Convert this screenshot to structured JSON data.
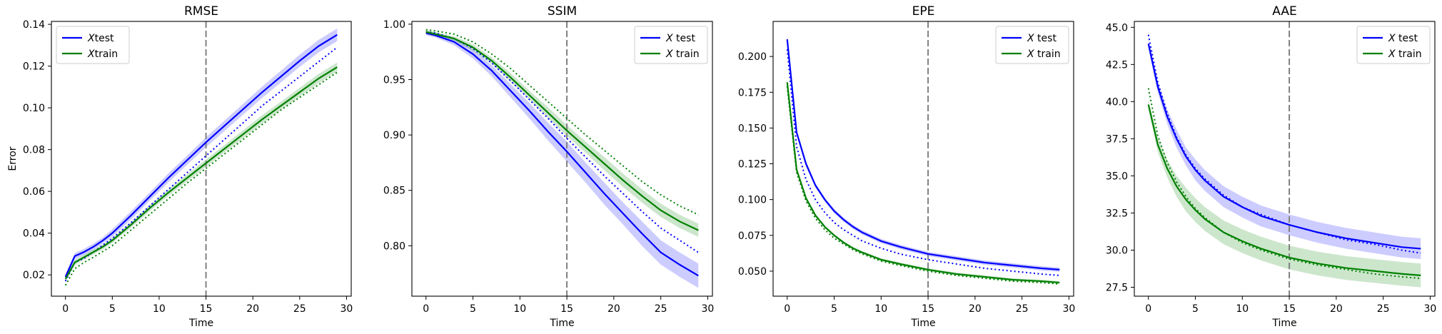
{
  "chart_data": [
    {
      "type": "line",
      "title": "RMSE",
      "xlabel": "Time",
      "ylabel": "Error",
      "xlim": [
        -1.5,
        30.5
      ],
      "ylim": [
        0.0098,
        0.1414
      ],
      "xticks": [
        0,
        5,
        10,
        15,
        20,
        25,
        30
      ],
      "yticks": [
        0.02,
        0.04,
        0.06,
        0.08,
        0.1,
        0.12,
        0.14
      ],
      "ytick_labels": [
        "0.02",
        "0.04",
        "0.06",
        "0.08",
        "0.10",
        "0.12",
        "0.14"
      ],
      "vline_x": 15,
      "legend_loc": "upper-left",
      "legend": [
        {
          "label": "Xtest",
          "italic": "X",
          "rest": "test",
          "color": "#0000ff"
        },
        {
          "label": "Xtrain",
          "italic": "X",
          "rest": "train",
          "color": "#008000"
        }
      ],
      "series": [
        {
          "name": "Xtest",
          "color": "#0000ff",
          "style": "solid",
          "x": [
            0,
            1,
            2,
            3,
            4,
            5,
            7,
            9,
            11,
            13,
            15,
            17,
            19,
            21,
            23,
            25,
            27,
            29
          ],
          "y": [
            0.019,
            0.029,
            0.031,
            0.0335,
            0.0365,
            0.04,
            0.0485,
            0.0575,
            0.0665,
            0.075,
            0.0835,
            0.0915,
            0.0995,
            0.1075,
            0.115,
            0.1225,
            0.1295,
            0.135
          ],
          "band": [
            0.0015,
            0.0015,
            0.0015,
            0.0015,
            0.0015,
            0.0018,
            0.002,
            0.002,
            0.0022,
            0.0022,
            0.0024,
            0.0025,
            0.0026,
            0.0027,
            0.0028,
            0.0029,
            0.003,
            0.003
          ]
        },
        {
          "name": "",
          "color": "#0000ff",
          "style": "dotted",
          "x": [
            0,
            1,
            2,
            3,
            5,
            7,
            9,
            11,
            13,
            15,
            17,
            19,
            21,
            23,
            25,
            27,
            29
          ],
          "y": [
            0.017,
            0.026,
            0.028,
            0.031,
            0.0375,
            0.045,
            0.053,
            0.061,
            0.069,
            0.077,
            0.085,
            0.093,
            0.101,
            0.108,
            0.115,
            0.122,
            0.129
          ]
        },
        {
          "name": "Xtrain",
          "color": "#008000",
          "style": "solid",
          "x": [
            0,
            1,
            2,
            3,
            4,
            5,
            7,
            9,
            11,
            13,
            15,
            17,
            19,
            21,
            23,
            25,
            27,
            29
          ],
          "y": [
            0.018,
            0.026,
            0.0285,
            0.031,
            0.0335,
            0.0365,
            0.044,
            0.052,
            0.0595,
            0.0665,
            0.0735,
            0.0805,
            0.0875,
            0.0945,
            0.101,
            0.1075,
            0.114,
            0.1195
          ],
          "band": [
            0.0012,
            0.0012,
            0.0012,
            0.0012,
            0.0012,
            0.0013,
            0.0014,
            0.0015,
            0.0016,
            0.0017,
            0.0018,
            0.0018,
            0.0019,
            0.002,
            0.002,
            0.0021,
            0.0022,
            0.0022
          ]
        },
        {
          "name": "",
          "color": "#008000",
          "style": "dotted",
          "x": [
            0,
            1,
            2,
            3,
            5,
            7,
            9,
            11,
            13,
            15,
            17,
            19,
            21,
            23,
            25,
            27,
            29
          ],
          "y": [
            0.015,
            0.023,
            0.026,
            0.0285,
            0.034,
            0.0415,
            0.049,
            0.0565,
            0.064,
            0.071,
            0.078,
            0.085,
            0.092,
            0.099,
            0.105,
            0.111,
            0.117
          ]
        }
      ]
    },
    {
      "type": "line",
      "title": "SSIM",
      "xlabel": "Time",
      "ylabel": "",
      "xlim": [
        -1.5,
        30.5
      ],
      "ylim": [
        0.7545,
        1.0025
      ],
      "xticks": [
        0,
        5,
        10,
        15,
        20,
        25,
        30
      ],
      "yticks": [
        0.8,
        0.85,
        0.9,
        0.95,
        1.0
      ],
      "ytick_labels": [
        "0.80",
        "0.85",
        "0.90",
        "0.95",
        "1.00"
      ],
      "vline_x": 15,
      "legend_loc": "upper-right",
      "legend": [
        {
          "label": "X test",
          "italic": "X",
          "rest": " test",
          "color": "#0000ff"
        },
        {
          "label": "X train",
          "italic": "X",
          "rest": " train",
          "color": "#008000"
        }
      ],
      "series": [
        {
          "name": "X test",
          "color": "#0000ff",
          "style": "solid",
          "x": [
            0,
            1,
            3,
            5,
            7,
            9,
            11,
            13,
            15,
            17,
            19,
            21,
            23,
            25,
            27,
            29
          ],
          "y": [
            0.992,
            0.99,
            0.984,
            0.973,
            0.958,
            0.94,
            0.922,
            0.903,
            0.885,
            0.866,
            0.847,
            0.829,
            0.811,
            0.794,
            0.783,
            0.773
          ],
          "band": [
            0.002,
            0.002,
            0.003,
            0.004,
            0.005,
            0.006,
            0.007,
            0.008,
            0.009,
            0.009,
            0.01,
            0.01,
            0.011,
            0.011,
            0.011,
            0.011
          ]
        },
        {
          "name": "",
          "color": "#0000ff",
          "style": "dotted",
          "x": [
            0,
            1,
            3,
            5,
            7,
            9,
            11,
            13,
            15,
            17,
            19,
            21,
            23,
            25,
            27,
            29
          ],
          "y": [
            0.993,
            0.992,
            0.987,
            0.978,
            0.965,
            0.949,
            0.932,
            0.915,
            0.897,
            0.88,
            0.863,
            0.847,
            0.831,
            0.816,
            0.805,
            0.794
          ]
        },
        {
          "name": "X train",
          "color": "#008000",
          "style": "solid",
          "x": [
            0,
            1,
            3,
            5,
            7,
            9,
            11,
            13,
            15,
            17,
            19,
            21,
            23,
            25,
            27,
            29
          ],
          "y": [
            0.993,
            0.991,
            0.987,
            0.979,
            0.967,
            0.952,
            0.936,
            0.92,
            0.904,
            0.889,
            0.874,
            0.859,
            0.845,
            0.832,
            0.822,
            0.814
          ],
          "band": [
            0.002,
            0.002,
            0.002,
            0.003,
            0.003,
            0.004,
            0.004,
            0.005,
            0.005,
            0.005,
            0.006,
            0.006,
            0.006,
            0.006,
            0.006,
            0.006
          ]
        },
        {
          "name": "",
          "color": "#008000",
          "style": "dotted",
          "x": [
            0,
            1,
            3,
            5,
            7,
            9,
            11,
            13,
            15,
            17,
            19,
            21,
            23,
            25,
            27,
            29
          ],
          "y": [
            0.995,
            0.994,
            0.991,
            0.984,
            0.973,
            0.96,
            0.945,
            0.93,
            0.915,
            0.9,
            0.886,
            0.872,
            0.858,
            0.846,
            0.836,
            0.828
          ]
        }
      ]
    },
    {
      "type": "line",
      "title": "EPE",
      "xlabel": "Time",
      "ylabel": "",
      "xlim": [
        -1.5,
        30.5
      ],
      "ylim": [
        0.0325,
        0.2245
      ],
      "xticks": [
        0,
        5,
        10,
        15,
        20,
        25,
        30
      ],
      "yticks": [
        0.05,
        0.075,
        0.1,
        0.125,
        0.15,
        0.175,
        0.2
      ],
      "ytick_labels": [
        "0.050",
        "0.075",
        "0.100",
        "0.125",
        "0.150",
        "0.175",
        "0.200"
      ],
      "vline_x": 15,
      "legend_loc": "upper-right",
      "legend": [
        {
          "label": "X test",
          "italic": "X",
          "rest": " test",
          "color": "#0000ff"
        },
        {
          "label": "X train",
          "italic": "X",
          "rest": " train",
          "color": "#008000"
        }
      ],
      "series": [
        {
          "name": "X test",
          "color": "#0000ff",
          "style": "solid",
          "x": [
            0,
            1,
            2,
            3,
            4,
            5,
            6,
            7,
            8,
            10,
            12,
            15,
            18,
            21,
            24,
            27,
            29
          ],
          "y": [
            0.212,
            0.147,
            0.125,
            0.11,
            0.1,
            0.092,
            0.086,
            0.081,
            0.077,
            0.071,
            0.067,
            0.062,
            0.059,
            0.056,
            0.054,
            0.052,
            0.051
          ],
          "band": [
            0.003,
            0.002,
            0.002,
            0.0015,
            0.0015,
            0.0015,
            0.0015,
            0.0015,
            0.0015,
            0.0015,
            0.0015,
            0.0015,
            0.0015,
            0.0015,
            0.0015,
            0.0015,
            0.0015
          ]
        },
        {
          "name": "",
          "color": "#0000ff",
          "style": "dotted",
          "x": [
            0,
            1,
            2,
            3,
            4,
            5,
            6,
            7,
            8,
            10,
            12,
            15,
            18,
            21,
            24,
            27,
            29
          ],
          "y": [
            0.205,
            0.137,
            0.114,
            0.1,
            0.091,
            0.084,
            0.079,
            0.075,
            0.071,
            0.066,
            0.062,
            0.058,
            0.055,
            0.052,
            0.05,
            0.048,
            0.047
          ]
        },
        {
          "name": "X train",
          "color": "#008000",
          "style": "solid",
          "x": [
            0,
            1,
            2,
            3,
            4,
            5,
            6,
            7,
            8,
            10,
            12,
            15,
            18,
            21,
            24,
            27,
            29
          ],
          "y": [
            0.182,
            0.121,
            0.101,
            0.089,
            0.081,
            0.075,
            0.07,
            0.066,
            0.063,
            0.058,
            0.055,
            0.051,
            0.048,
            0.046,
            0.044,
            0.043,
            0.042
          ],
          "band": [
            0.002,
            0.0015,
            0.0012,
            0.001,
            0.001,
            0.001,
            0.001,
            0.001,
            0.001,
            0.001,
            0.001,
            0.001,
            0.001,
            0.001,
            0.001,
            0.001,
            0.001
          ]
        },
        {
          "name": "",
          "color": "#008000",
          "style": "dotted",
          "x": [
            0,
            1,
            2,
            3,
            4,
            5,
            6,
            7,
            8,
            10,
            12,
            15,
            18,
            21,
            24,
            27,
            29
          ],
          "y": [
            0.179,
            0.119,
            0.099,
            0.087,
            0.079,
            0.073,
            0.069,
            0.065,
            0.062,
            0.057,
            0.054,
            0.05,
            0.047,
            0.045,
            0.043,
            0.042,
            0.041
          ]
        }
      ]
    },
    {
      "type": "line",
      "title": "AAE",
      "xlabel": "Time",
      "ylabel": "",
      "xlim": [
        -1.5,
        30.5
      ],
      "ylim": [
        26.9,
        45.4
      ],
      "xticks": [
        0,
        5,
        10,
        15,
        20,
        25,
        30
      ],
      "yticks": [
        27.5,
        30.0,
        32.5,
        35.0,
        37.5,
        40.0,
        42.5,
        45.0
      ],
      "ytick_labels": [
        "27.5",
        "30.0",
        "32.5",
        "35.0",
        "37.5",
        "40.0",
        "42.5",
        "45.0"
      ],
      "vline_x": 15,
      "legend_loc": "upper-right",
      "legend": [
        {
          "label": "X test",
          "italic": "X",
          "rest": " test",
          "color": "#0000ff"
        },
        {
          "label": "X train",
          "italic": "X",
          "rest": " train",
          "color": "#008000"
        }
      ],
      "series": [
        {
          "name": "X test",
          "color": "#0000ff",
          "style": "solid",
          "x": [
            0,
            1,
            2,
            3,
            4,
            5,
            6,
            8,
            10,
            12,
            15,
            18,
            21,
            24,
            27,
            29
          ],
          "y": [
            43.9,
            41.0,
            39.0,
            37.5,
            36.3,
            35.4,
            34.7,
            33.6,
            32.9,
            32.3,
            31.7,
            31.2,
            30.8,
            30.5,
            30.2,
            30.1
          ],
          "band": [
            0.3,
            0.4,
            0.5,
            0.6,
            0.6,
            0.7,
            0.7,
            0.7,
            0.7,
            0.7,
            0.7,
            0.7,
            0.7,
            0.7,
            0.7,
            0.7
          ]
        },
        {
          "name": "",
          "color": "#0000ff",
          "style": "dotted",
          "x": [
            0,
            1,
            2,
            3,
            4,
            5,
            6,
            8,
            10,
            12,
            15,
            18,
            21,
            24,
            27,
            29
          ],
          "y": [
            44.5,
            41.3,
            39.2,
            37.6,
            36.4,
            35.5,
            34.8,
            33.7,
            32.9,
            32.4,
            31.7,
            31.2,
            30.7,
            30.4,
            30.0,
            29.8
          ]
        },
        {
          "name": "X train",
          "color": "#008000",
          "style": "solid",
          "x": [
            0,
            1,
            2,
            3,
            4,
            5,
            6,
            8,
            10,
            12,
            15,
            18,
            21,
            24,
            27,
            29
          ],
          "y": [
            39.8,
            37.1,
            35.5,
            34.3,
            33.4,
            32.7,
            32.1,
            31.2,
            30.6,
            30.1,
            29.5,
            29.1,
            28.8,
            28.6,
            28.4,
            28.3
          ],
          "band": [
            0.3,
            0.5,
            0.6,
            0.7,
            0.8,
            0.8,
            0.8,
            0.8,
            0.8,
            0.8,
            0.8,
            0.8,
            0.8,
            0.8,
            0.8,
            0.8
          ]
        },
        {
          "name": "",
          "color": "#008000",
          "style": "dotted",
          "x": [
            0,
            1,
            2,
            3,
            4,
            5,
            6,
            8,
            10,
            12,
            15,
            18,
            21,
            24,
            27,
            29
          ],
          "y": [
            40.9,
            37.7,
            35.9,
            34.6,
            33.6,
            32.8,
            32.2,
            31.2,
            30.5,
            30.0,
            29.4,
            29.0,
            28.7,
            28.4,
            28.2,
            28.1
          ]
        }
      ]
    }
  ]
}
